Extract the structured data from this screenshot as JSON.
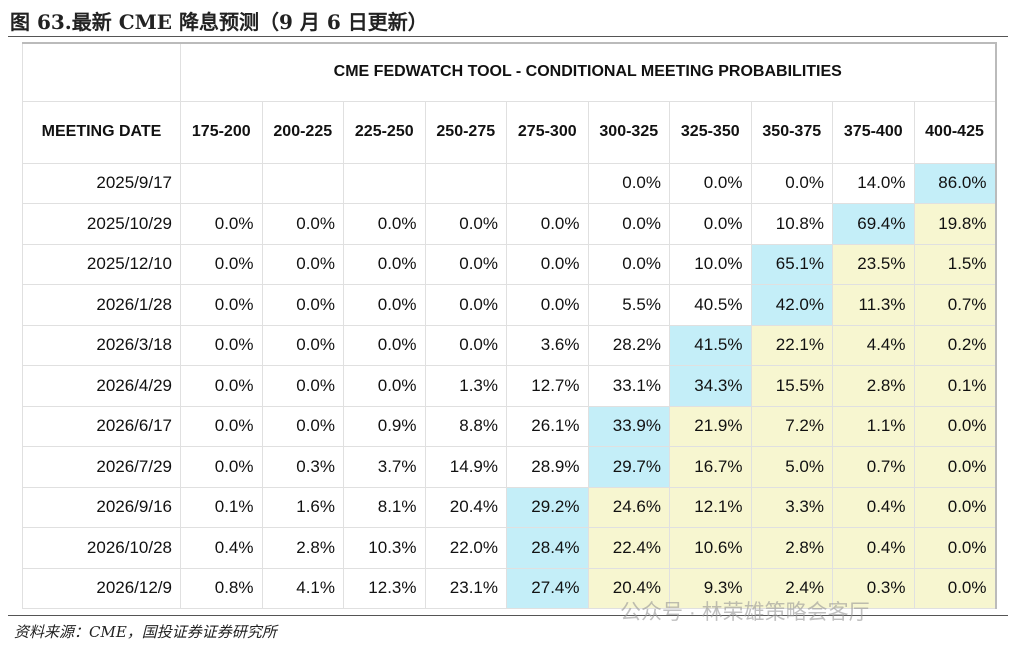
{
  "figure_title": "图 63.最新 CME 降息预测（9 月 6 日更新）",
  "table": {
    "title": "CME FEDWATCH TOOL - CONDITIONAL MEETING PROBABILITIES",
    "header": [
      "MEETING DATE",
      "175-200",
      "200-225",
      "225-250",
      "250-275",
      "275-300",
      "300-325",
      "325-350",
      "350-375",
      "375-400",
      "400-425"
    ],
    "rows": [
      [
        "2025/9/17",
        null,
        null,
        null,
        null,
        null,
        "0.0%",
        "0.0%",
        "0.0%",
        "14.0%",
        "86.0%"
      ],
      [
        "2025/10/29",
        "0.0%",
        "0.0%",
        "0.0%",
        "0.0%",
        "0.0%",
        "0.0%",
        "0.0%",
        "10.8%",
        "69.4%",
        "19.8%"
      ],
      [
        "2025/12/10",
        "0.0%",
        "0.0%",
        "0.0%",
        "0.0%",
        "0.0%",
        "0.0%",
        "10.0%",
        "65.1%",
        "23.5%",
        "1.5%"
      ],
      [
        "2026/1/28",
        "0.0%",
        "0.0%",
        "0.0%",
        "0.0%",
        "0.0%",
        "5.5%",
        "40.5%",
        "42.0%",
        "11.3%",
        "0.7%"
      ],
      [
        "2026/3/18",
        "0.0%",
        "0.0%",
        "0.0%",
        "0.0%",
        "3.6%",
        "28.2%",
        "41.5%",
        "22.1%",
        "4.4%",
        "0.2%"
      ],
      [
        "2026/4/29",
        "0.0%",
        "0.0%",
        "0.0%",
        "1.3%",
        "12.7%",
        "33.1%",
        "34.3%",
        "15.5%",
        "2.8%",
        "0.1%"
      ],
      [
        "2026/6/17",
        "0.0%",
        "0.0%",
        "0.9%",
        "8.8%",
        "26.1%",
        "33.9%",
        "21.9%",
        "7.2%",
        "1.1%",
        "0.0%"
      ],
      [
        "2026/7/29",
        "0.0%",
        "0.3%",
        "3.7%",
        "14.9%",
        "28.9%",
        "29.7%",
        "16.7%",
        "5.0%",
        "0.7%",
        "0.0%"
      ],
      [
        "2026/9/16",
        "0.1%",
        "1.6%",
        "8.1%",
        "20.4%",
        "29.2%",
        "24.6%",
        "12.1%",
        "3.3%",
        "0.4%",
        "0.0%"
      ],
      [
        "2026/10/28",
        "0.4%",
        "2.8%",
        "10.3%",
        "22.0%",
        "28.4%",
        "22.4%",
        "10.6%",
        "2.8%",
        "0.4%",
        "0.0%"
      ],
      [
        "2026/12/9",
        "0.8%",
        "4.1%",
        "12.3%",
        "23.1%",
        "27.4%",
        "20.4%",
        "9.3%",
        "2.4%",
        "0.3%",
        "0.0%"
      ]
    ]
  },
  "source": "资料来源：CME，国投证券证券研究所",
  "watermark": "公众号 · 林荣雄策略会客厅"
}
